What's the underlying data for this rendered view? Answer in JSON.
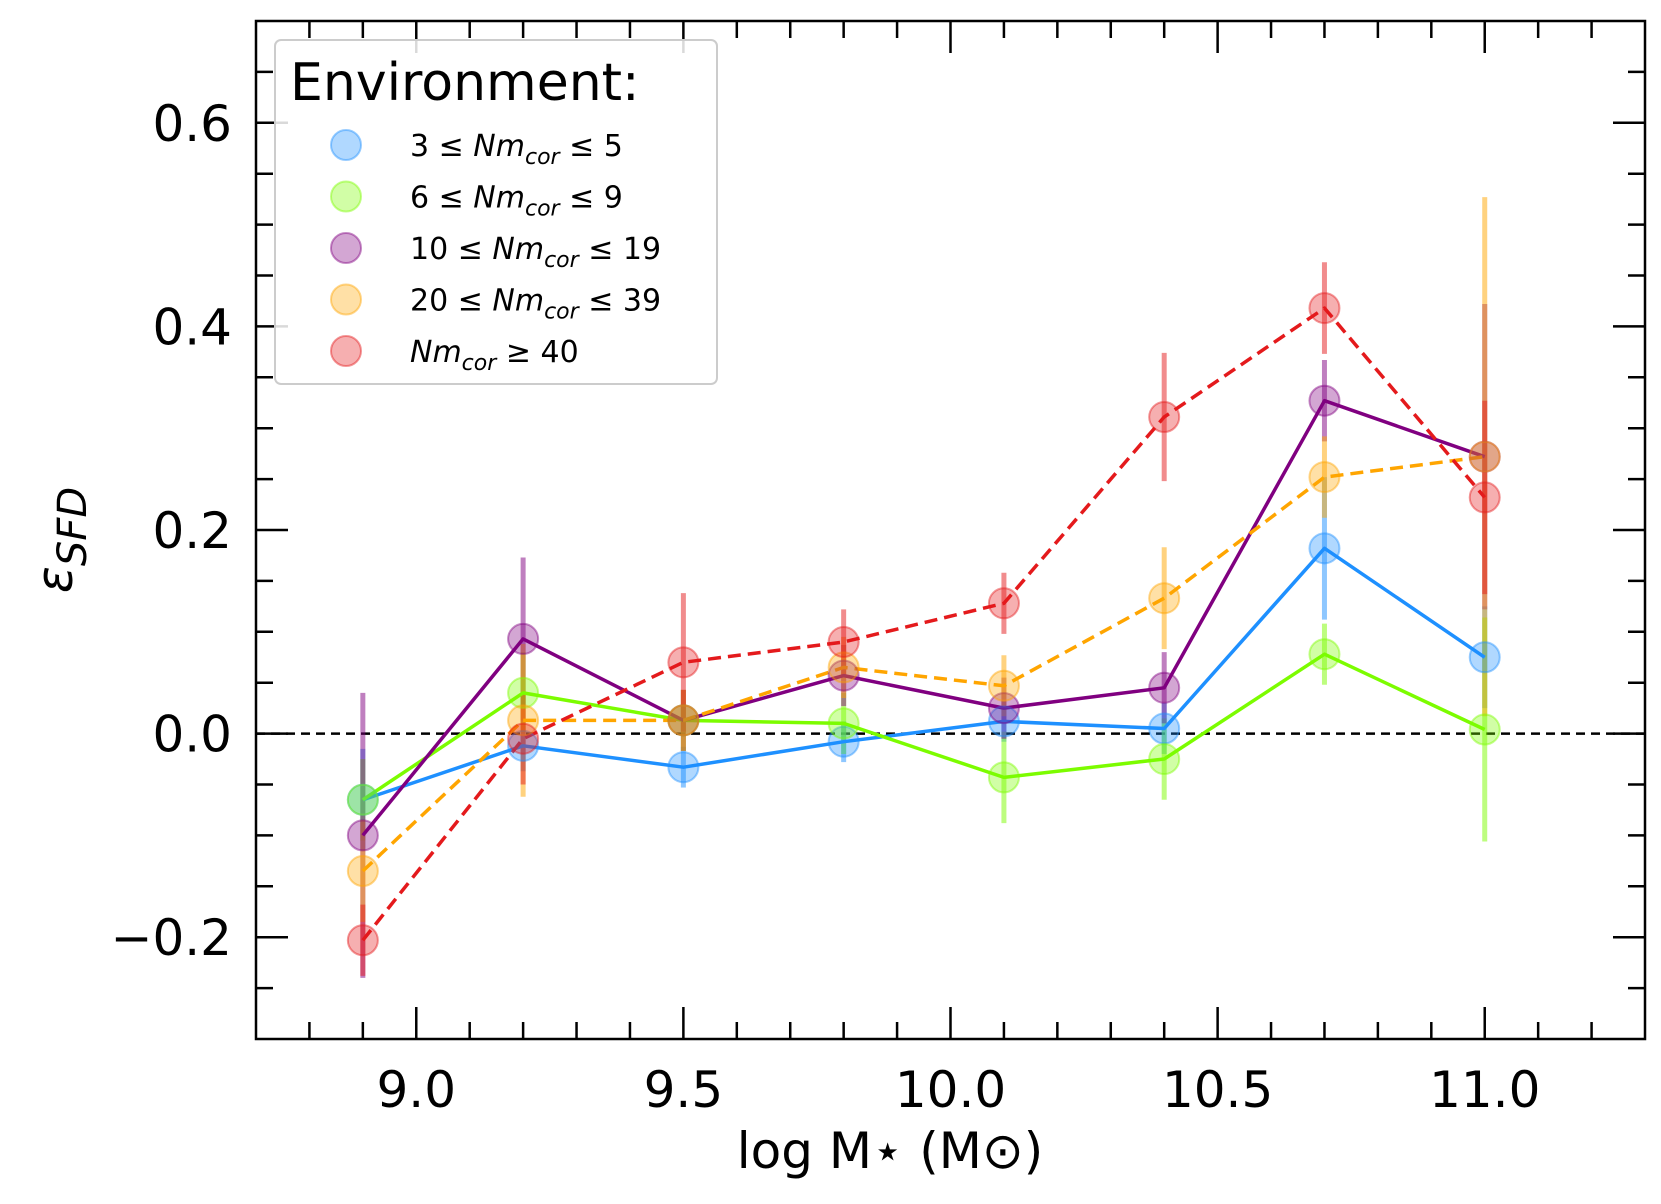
{
  "chart_data": {
    "type": "line",
    "xlabel": "log M⋆ (M⊙)",
    "ylabel": "ε",
    "ylabel_sub": "SFD",
    "xlim": [
      8.7,
      11.3
    ],
    "ylim": [
      -0.3,
      0.7
    ],
    "xticks": [
      9.0,
      9.5,
      10.0,
      10.5,
      11.0
    ],
    "xtick_labels": [
      "9.0",
      "9.5",
      "10.0",
      "10.5",
      "11.0"
    ],
    "yticks": [
      -0.2,
      0.0,
      0.2,
      0.4,
      0.6
    ],
    "ytick_labels": [
      "−0.2",
      "0.0",
      "0.2",
      "0.4",
      "0.6"
    ],
    "reference_line": 0.0,
    "legend_title": "Environment:",
    "legend_position": "upper-left",
    "series": [
      {
        "name": "3 ≤ Nm_cor ≤ 5",
        "legend": {
          "pre": "3 ≤ ",
          "sub": "cor",
          "post": " ≤ 5"
        },
        "color": "#1e90ff",
        "line_style": "solid",
        "x": [
          8.9,
          9.2,
          9.5,
          9.8,
          10.1,
          10.4,
          10.7,
          11.0
        ],
        "y": [
          -0.065,
          -0.012,
          -0.033,
          -0.008,
          0.012,
          0.005,
          0.182,
          0.075
        ],
        "err": [
          0.05,
          0.025,
          0.02,
          0.02,
          0.02,
          0.025,
          0.07,
          0.05
        ]
      },
      {
        "name": "6 ≤ Nm_cor ≤ 9",
        "legend": {
          "pre": "6 ≤ ",
          "sub": "cor",
          "post": " ≤ 9"
        },
        "color": "#7cfc00",
        "line_style": "solid",
        "x": [
          8.9,
          9.2,
          9.5,
          9.8,
          10.1,
          10.4,
          10.7,
          11.0
        ],
        "y": [
          -0.065,
          0.04,
          0.013,
          0.01,
          -0.043,
          -0.025,
          0.078,
          0.004
        ],
        "err": [
          0.04,
          0.04,
          0.03,
          0.03,
          0.045,
          0.04,
          0.03,
          0.11
        ]
      },
      {
        "name": "10 ≤ Nm_cor ≤ 19",
        "legend": {
          "pre": "10 ≤ ",
          "sub": "cor",
          "post": " ≤ 19"
        },
        "color": "#800080",
        "line_style": "solid",
        "x": [
          8.9,
          9.2,
          9.5,
          9.8,
          10.1,
          10.4,
          10.7,
          11.0
        ],
        "y": [
          -0.1,
          0.093,
          0.013,
          0.057,
          0.025,
          0.045,
          0.327,
          0.272
        ],
        "err": [
          0.14,
          0.08,
          0.03,
          0.03,
          0.03,
          0.035,
          0.04,
          0.15
        ]
      },
      {
        "name": "20 ≤ Nm_cor ≤ 39",
        "legend": {
          "pre": "20 ≤ ",
          "sub": "cor",
          "post": " ≤ 39"
        },
        "color": "#ffa500",
        "line_style": "dashed",
        "x": [
          8.9,
          9.2,
          9.5,
          9.8,
          10.1,
          10.4,
          10.7,
          11.0
        ],
        "y": [
          -0.135,
          0.013,
          0.013,
          0.065,
          0.047,
          0.133,
          0.252,
          0.272
        ],
        "err": [
          0.05,
          0.075,
          0.03,
          0.03,
          0.03,
          0.05,
          0.04,
          0.255
        ]
      },
      {
        "name": "Nm_cor ≥ 40",
        "legend": {
          "pre": "",
          "sub": "cor",
          "post": " ≥ 40"
        },
        "color": "#e41a1c",
        "line_style": "dashed",
        "x": [
          8.9,
          9.2,
          9.5,
          9.8,
          10.1,
          10.4,
          10.7,
          11.0
        ],
        "y": [
          -0.203,
          -0.005,
          0.07,
          0.09,
          0.128,
          0.311,
          0.418,
          0.232
        ],
        "err": [
          0.035,
          0.045,
          0.068,
          0.032,
          0.03,
          0.063,
          0.045,
          0.095
        ]
      }
    ]
  }
}
